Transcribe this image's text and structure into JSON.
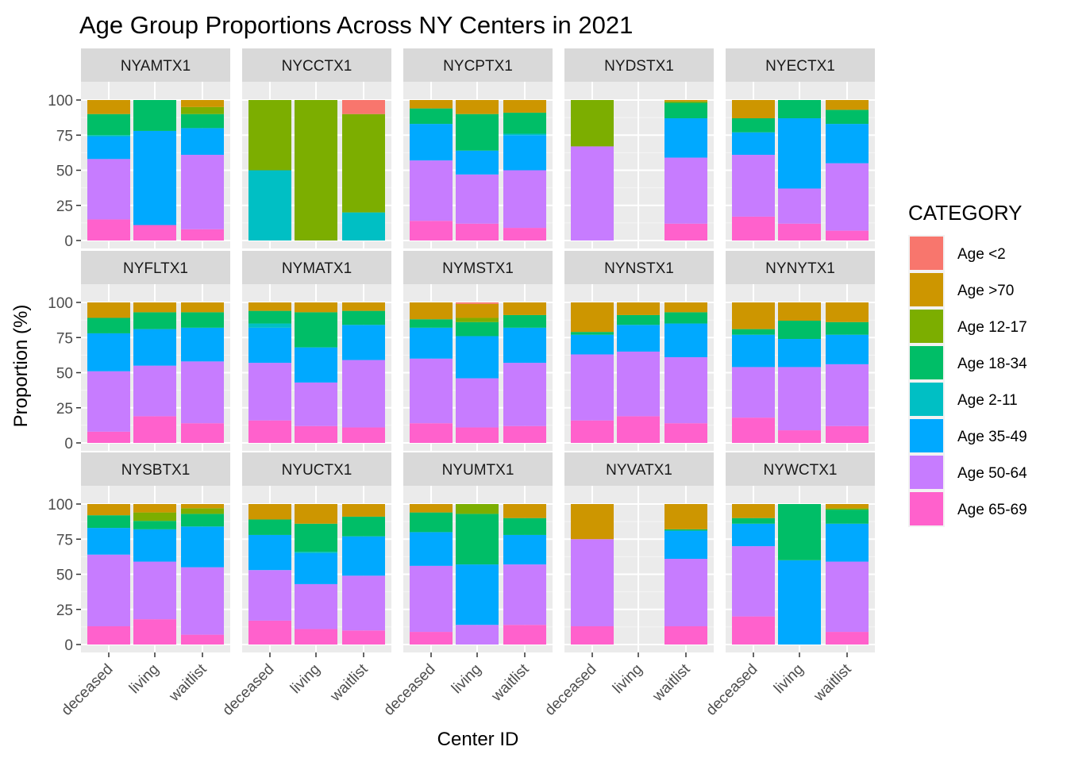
{
  "chart_data": {
    "type": "bar",
    "stacked": true,
    "title": "Age Group Proportions Across NY Centers in 2021",
    "xlabel": "Center ID",
    "ylabel": "Proportion (%)",
    "ylim": [
      0,
      100
    ],
    "yticks": [
      "0",
      "25",
      "50",
      "75",
      "100"
    ],
    "grid": true,
    "legend_placement": "right",
    "categories": [
      "deceased",
      "living",
      "waitlist"
    ],
    "legend": {
      "title": "CATEGORY",
      "entries": [
        {
          "name": "Age <2",
          "color": "#F8766D"
        },
        {
          "name": "Age >70",
          "color": "#CD9600"
        },
        {
          "name": "Age 12-17",
          "color": "#7CAE00"
        },
        {
          "name": "Age 18-34",
          "color": "#00BE67"
        },
        {
          "name": "Age 2-11",
          "color": "#00BFC4"
        },
        {
          "name": "Age 35-49",
          "color": "#00A9FF"
        },
        {
          "name": "Age 50-64",
          "color": "#C77CFF"
        },
        {
          "name": "Age 65-69",
          "color": "#FF61CC"
        }
      ]
    },
    "stack_order_bottom_to_top": [
      "Age 65-69",
      "Age 50-64",
      "Age 35-49",
      "Age 2-11",
      "Age 18-34",
      "Age 12-17",
      "Age >70",
      "Age <2"
    ],
    "panels": [
      {
        "center": "NYAMTX1",
        "bars": {
          "deceased": {
            "Age 65-69": 15,
            "Age 50-64": 43,
            "Age 35-49": 16,
            "Age 2-11": 1,
            "Age 18-34": 15,
            "Age >70": 10
          },
          "living": {
            "Age 65-69": 11,
            "Age 35-49": 67,
            "Age 18-34": 22
          },
          "waitlist": {
            "Age 65-69": 8,
            "Age 50-64": 53,
            "Age 35-49": 19,
            "Age 18-34": 10,
            "Age 12-17": 5,
            "Age >70": 5
          }
        }
      },
      {
        "center": "NYCCTX1",
        "bars": {
          "deceased": {
            "Age 2-11": 50,
            "Age 12-17": 50
          },
          "living": {
            "Age 12-17": 100
          },
          "waitlist": {
            "Age 2-11": 20,
            "Age 12-17": 70,
            "Age <2": 10
          }
        }
      },
      {
        "center": "NYCPTX1",
        "bars": {
          "deceased": {
            "Age 65-69": 14,
            "Age 50-64": 43,
            "Age 35-49": 26,
            "Age 18-34": 11,
            "Age >70": 6
          },
          "living": {
            "Age 65-69": 12,
            "Age 50-64": 35,
            "Age 35-49": 17,
            "Age 18-34": 26,
            "Age >70": 10
          },
          "waitlist": {
            "Age 65-69": 9,
            "Age 50-64": 41,
            "Age 35-49": 25,
            "Age 2-11": 1,
            "Age 18-34": 15,
            "Age >70": 9
          }
        }
      },
      {
        "center": "NYDSTX1",
        "bars": {
          "deceased": {
            "Age 50-64": 67,
            "Age 12-17": 33
          },
          "living": {},
          "waitlist": {
            "Age 65-69": 12,
            "Age 50-64": 47,
            "Age 35-49": 28,
            "Age 18-34": 11,
            "Age 12-17": 1,
            "Age >70": 1
          }
        }
      },
      {
        "center": "NYECTX1",
        "bars": {
          "deceased": {
            "Age 65-69": 17,
            "Age 50-64": 44,
            "Age 35-49": 16,
            "Age 18-34": 10,
            "Age >70": 13
          },
          "living": {
            "Age 65-69": 12,
            "Age 50-64": 25,
            "Age 35-49": 50,
            "Age 18-34": 13
          },
          "waitlist": {
            "Age 65-69": 7,
            "Age 50-64": 48,
            "Age 35-49": 28,
            "Age 18-34": 10,
            "Age >70": 7
          }
        }
      },
      {
        "center": "NYFLTX1",
        "bars": {
          "deceased": {
            "Age 65-69": 8,
            "Age 50-64": 43,
            "Age 35-49": 27,
            "Age 18-34": 11,
            "Age >70": 11
          },
          "living": {
            "Age 65-69": 19,
            "Age 50-64": 36,
            "Age 35-49": 26,
            "Age 18-34": 12,
            "Age >70": 7
          },
          "waitlist": {
            "Age 65-69": 14,
            "Age 50-64": 44,
            "Age 35-49": 24,
            "Age 18-34": 11,
            "Age >70": 7
          }
        }
      },
      {
        "center": "NYMATX1",
        "bars": {
          "deceased": {
            "Age 65-69": 16,
            "Age 50-64": 41,
            "Age 35-49": 25,
            "Age 2-11": 3,
            "Age 18-34": 9,
            "Age >70": 6
          },
          "living": {
            "Age 65-69": 12,
            "Age 50-64": 31,
            "Age 35-49": 25,
            "Age 18-34": 25,
            "Age >70": 7
          },
          "waitlist": {
            "Age 65-69": 11,
            "Age 50-64": 48,
            "Age 35-49": 25,
            "Age 18-34": 10,
            "Age >70": 6
          }
        }
      },
      {
        "center": "NYMSTX1",
        "bars": {
          "deceased": {
            "Age 65-69": 14,
            "Age 50-64": 46,
            "Age 35-49": 22,
            "Age 18-34": 6,
            "Age >70": 12
          },
          "living": {
            "Age 65-69": 11,
            "Age 50-64": 35,
            "Age 35-49": 30,
            "Age 18-34": 10,
            "Age 12-17": 3,
            "Age >70": 10,
            "Age <2": 1
          },
          "waitlist": {
            "Age 65-69": 12,
            "Age 50-64": 45,
            "Age 35-49": 25,
            "Age 18-34": 9,
            "Age >70": 9
          }
        }
      },
      {
        "center": "NYNSTX1",
        "bars": {
          "deceased": {
            "Age 65-69": 16,
            "Age 50-64": 47,
            "Age 35-49": 14,
            "Age 18-34": 2,
            "Age >70": 21
          },
          "living": {
            "Age 65-69": 19,
            "Age 50-64": 46,
            "Age 35-49": 19,
            "Age 18-34": 7,
            "Age >70": 9
          },
          "waitlist": {
            "Age 65-69": 14,
            "Age 50-64": 47,
            "Age 35-49": 24,
            "Age 18-34": 8,
            "Age >70": 7
          }
        }
      },
      {
        "center": "NYNYTX1",
        "bars": {
          "deceased": {
            "Age 65-69": 18,
            "Age 50-64": 36,
            "Age 35-49": 23,
            "Age 18-34": 4,
            "Age >70": 19
          },
          "living": {
            "Age 65-69": 9,
            "Age 50-64": 45,
            "Age 35-49": 20,
            "Age 18-34": 13,
            "Age >70": 13
          },
          "waitlist": {
            "Age 65-69": 12,
            "Age 50-64": 44,
            "Age 35-49": 21,
            "Age 18-34": 9,
            "Age >70": 14
          }
        }
      },
      {
        "center": "NYSBTX1",
        "bars": {
          "deceased": {
            "Age 65-69": 13,
            "Age 50-64": 51,
            "Age 35-49": 19,
            "Age 18-34": 9,
            "Age >70": 8
          },
          "living": {
            "Age 65-69": 18,
            "Age 50-64": 41,
            "Age 35-49": 23,
            "Age 18-34": 6,
            "Age 12-17": 6,
            "Age >70": 6
          },
          "waitlist": {
            "Age 65-69": 7,
            "Age 50-64": 48,
            "Age 35-49": 29,
            "Age 18-34": 9,
            "Age 12-17": 4,
            "Age >70": 3
          }
        }
      },
      {
        "center": "NYUCTX1",
        "bars": {
          "deceased": {
            "Age 65-69": 17,
            "Age 50-64": 36,
            "Age 35-49": 25,
            "Age 18-34": 11,
            "Age >70": 11
          },
          "living": {
            "Age 65-69": 11,
            "Age 50-64": 32,
            "Age 35-49": 22,
            "Age 2-11": 1,
            "Age 18-34": 20,
            "Age >70": 14
          },
          "waitlist": {
            "Age 65-69": 10,
            "Age 50-64": 39,
            "Age 35-49": 28,
            "Age 18-34": 14,
            "Age >70": 9
          }
        }
      },
      {
        "center": "NYUMTX1",
        "bars": {
          "deceased": {
            "Age 65-69": 9,
            "Age 50-64": 47,
            "Age 35-49": 24,
            "Age 18-34": 14,
            "Age >70": 6
          },
          "living": {
            "Age 50-64": 14,
            "Age 35-49": 43,
            "Age 18-34": 36,
            "Age 12-17": 7
          },
          "waitlist": {
            "Age 65-69": 14,
            "Age 50-64": 43,
            "Age 35-49": 21,
            "Age 18-34": 12,
            "Age >70": 10
          }
        }
      },
      {
        "center": "NYVATX1",
        "bars": {
          "deceased": {
            "Age 65-69": 13,
            "Age 50-64": 62,
            "Age >70": 25
          },
          "living": {},
          "waitlist": {
            "Age 65-69": 13,
            "Age 50-64": 48,
            "Age 35-49": 20,
            "Age 18-34": 1,
            "Age >70": 18
          }
        }
      },
      {
        "center": "NYWCTX1",
        "bars": {
          "deceased": {
            "Age 65-69": 20,
            "Age 50-64": 50,
            "Age 35-49": 16,
            "Age 18-34": 4,
            "Age >70": 10
          },
          "living": {
            "Age 35-49": 60,
            "Age 18-34": 40
          },
          "waitlist": {
            "Age 65-69": 9,
            "Age 50-64": 50,
            "Age 35-49": 27,
            "Age 18-34": 10,
            "Age 12-17": 1,
            "Age >70": 3
          }
        }
      }
    ]
  }
}
